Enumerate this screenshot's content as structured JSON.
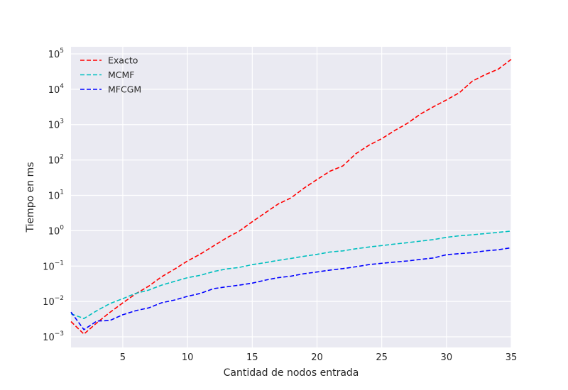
{
  "chart_data": {
    "type": "line",
    "xlabel": "Cantidad de nodos entrada",
    "ylabel": "Tiempo en ms",
    "xlim": [
      1,
      35
    ],
    "ylim_log10": [
      -3.3,
      5.2
    ],
    "y_scale": "log",
    "grid": true,
    "legend_position": "top-left",
    "x_ticks": [
      5,
      10,
      15,
      20,
      25,
      30,
      35
    ],
    "y_ticks": [
      {
        "base": "10",
        "exp": "−3",
        "pow": -3
      },
      {
        "base": "10",
        "exp": "−2",
        "pow": -2
      },
      {
        "base": "10",
        "exp": "−1",
        "pow": -1
      },
      {
        "base": "10",
        "exp": "0",
        "pow": 0
      },
      {
        "base": "10",
        "exp": "1",
        "pow": 1
      },
      {
        "base": "10",
        "exp": "2",
        "pow": 2
      },
      {
        "base": "10",
        "exp": "3",
        "pow": 3
      },
      {
        "base": "10",
        "exp": "4",
        "pow": 4
      },
      {
        "base": "10",
        "exp": "5",
        "pow": 5
      }
    ],
    "x": [
      1,
      2,
      3,
      4,
      5,
      6,
      7,
      8,
      9,
      10,
      11,
      12,
      13,
      14,
      15,
      16,
      17,
      18,
      19,
      20,
      21,
      22,
      23,
      24,
      25,
      26,
      27,
      28,
      29,
      30,
      31,
      32,
      33,
      34,
      35
    ],
    "series": [
      {
        "name": "Exacto",
        "color": "#ff0000",
        "values": [
          0.0027,
          0.0012,
          0.0025,
          0.0049,
          0.0091,
          0.0165,
          0.027,
          0.05,
          0.082,
          0.14,
          0.22,
          0.37,
          0.62,
          0.98,
          1.8,
          3.2,
          5.7,
          8.5,
          16,
          28,
          48,
          68,
          150,
          260,
          400,
          680,
          1100,
          2000,
          3200,
          5000,
          8000,
          17000,
          26000,
          37000,
          70000
        ]
      },
      {
        "name": "MCMF",
        "color": "#00bfbf",
        "values": [
          0.0045,
          0.0033,
          0.0055,
          0.0087,
          0.012,
          0.017,
          0.021,
          0.029,
          0.037,
          0.047,
          0.055,
          0.07,
          0.083,
          0.092,
          0.11,
          0.125,
          0.145,
          0.165,
          0.19,
          0.215,
          0.25,
          0.27,
          0.31,
          0.345,
          0.38,
          0.42,
          0.46,
          0.51,
          0.56,
          0.65,
          0.72,
          0.77,
          0.83,
          0.9,
          0.98
        ]
      },
      {
        "name": "MFCGM",
        "color": "#0000ff",
        "values": [
          0.005,
          0.0016,
          0.0028,
          0.0029,
          0.0042,
          0.0055,
          0.0066,
          0.0092,
          0.011,
          0.014,
          0.017,
          0.023,
          0.026,
          0.029,
          0.033,
          0.04,
          0.047,
          0.052,
          0.061,
          0.068,
          0.077,
          0.085,
          0.096,
          0.11,
          0.12,
          0.13,
          0.14,
          0.155,
          0.17,
          0.21,
          0.225,
          0.24,
          0.27,
          0.29,
          0.33
        ]
      }
    ]
  }
}
